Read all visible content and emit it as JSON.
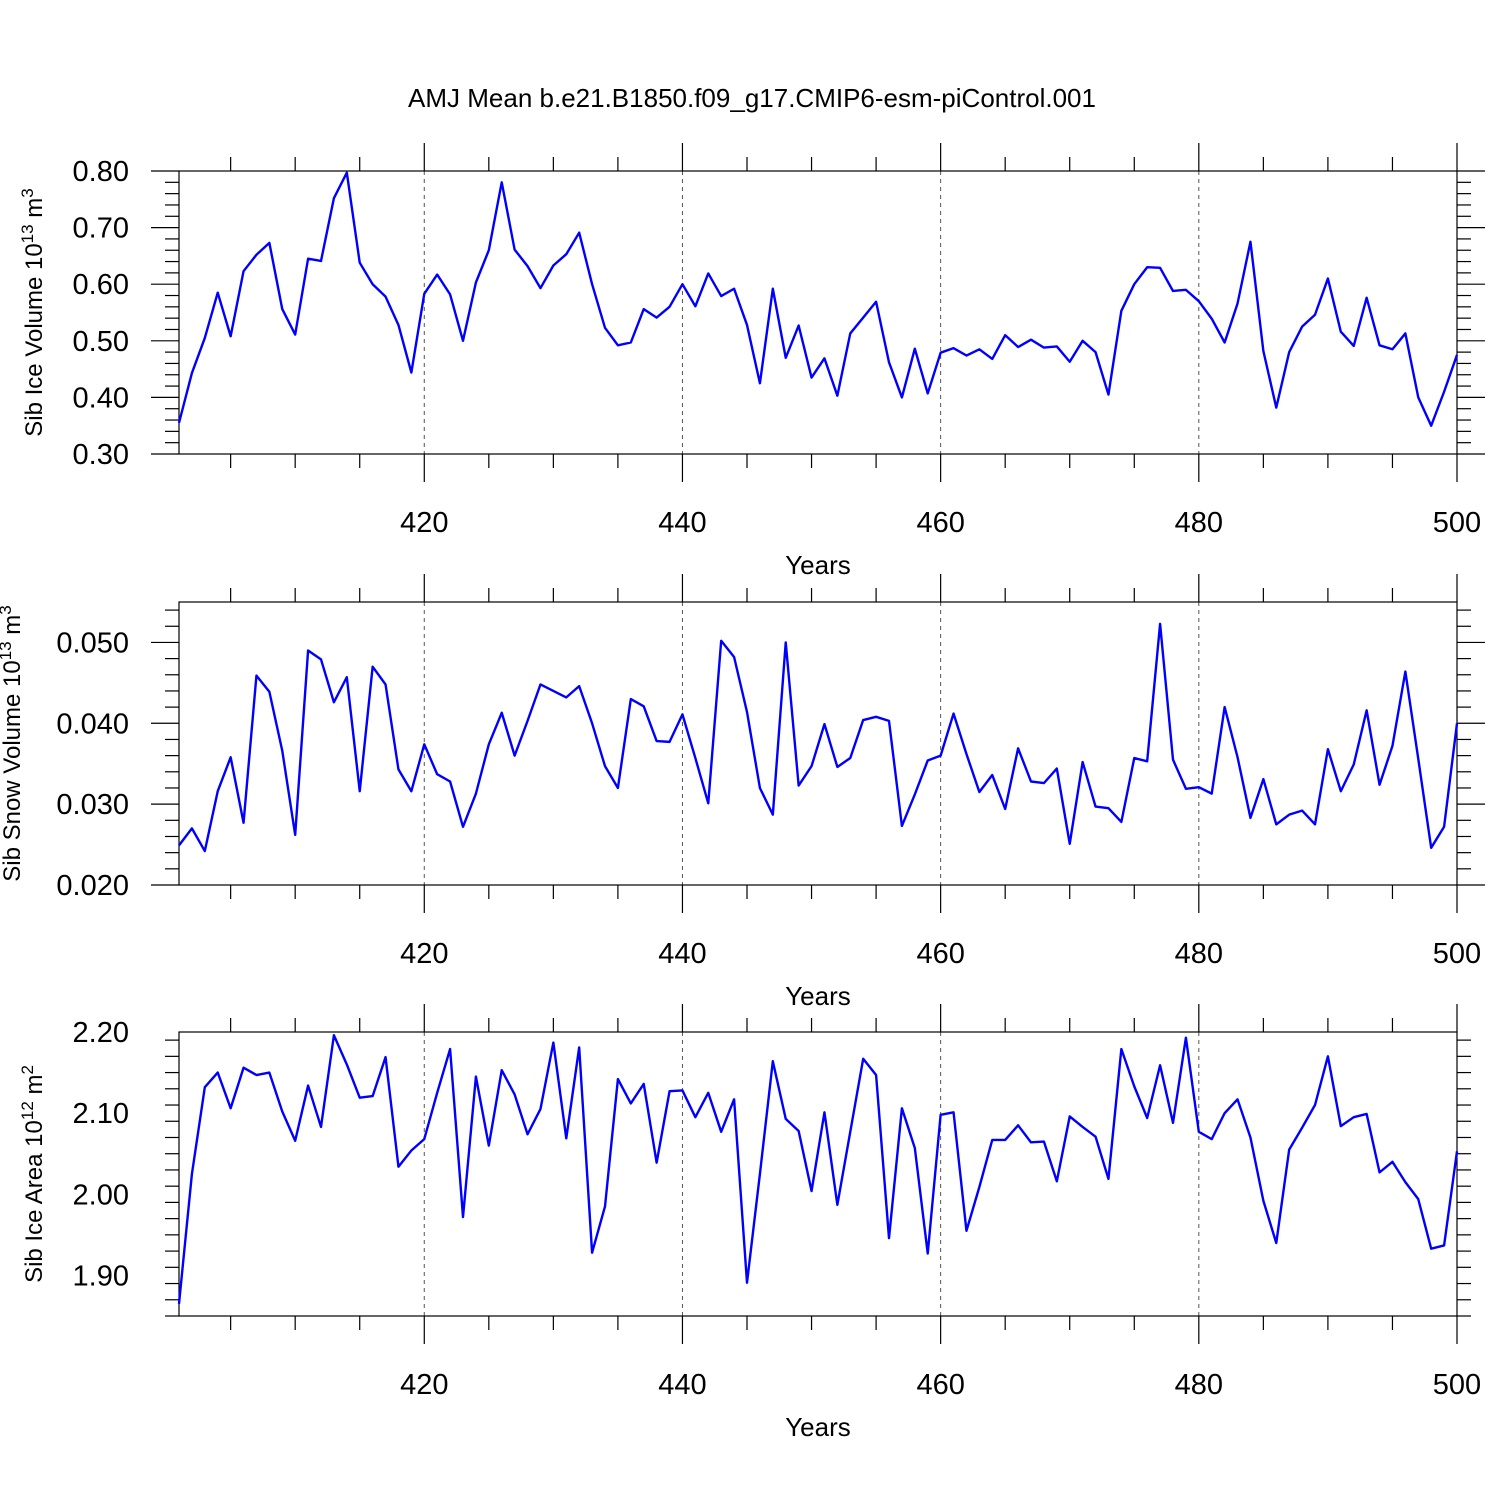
{
  "figure": {
    "title": "AMJ Mean b.e21.B1850.f09_g17.CMIP6-esm-piControl.001"
  },
  "style": {
    "line_color": "#0000ff",
    "grid_color": "#555555"
  },
  "chart_data": [
    {
      "type": "line",
      "xlabel": "Years",
      "ylabel": {
        "prefix": "Sib Ice Volume 10",
        "sup1": "13",
        "mid": " m",
        "sup2": "3"
      },
      "xlim": [
        401,
        500
      ],
      "ylim": [
        0.3,
        0.8
      ],
      "xticks": [
        420,
        440,
        460,
        480,
        500
      ],
      "xticklabels": [
        "420",
        "440",
        "460",
        "480",
        "500"
      ],
      "yticks": [
        0.3,
        0.4,
        0.5,
        0.6,
        0.7,
        0.8
      ],
      "yticklabels": [
        "0.30",
        "0.40",
        "0.50",
        "0.60",
        "0.70",
        "0.80"
      ],
      "grid": "vertical dashed at major x ticks",
      "series": [
        {
          "x_start": 401,
          "values": [
            0.355,
            0.443,
            0.505,
            0.585,
            0.508,
            0.623,
            0.652,
            0.673,
            0.556,
            0.511,
            0.645,
            0.641,
            0.752,
            0.797,
            0.638,
            0.6,
            0.578,
            0.528,
            0.444,
            0.583,
            0.617,
            0.582,
            0.5,
            0.603,
            0.66,
            0.78,
            0.661,
            0.632,
            0.593,
            0.633,
            0.653,
            0.691,
            0.6,
            0.523,
            0.492,
            0.497,
            0.556,
            0.541,
            0.56,
            0.6,
            0.561,
            0.619,
            0.579,
            0.592,
            0.528,
            0.425,
            0.592,
            0.47,
            0.527,
            0.435,
            0.469,
            0.403,
            0.513,
            0.541,
            0.569,
            0.462,
            0.4,
            0.486,
            0.407,
            0.479,
            0.487,
            0.474,
            0.485,
            0.468,
            0.51,
            0.489,
            0.502,
            0.488,
            0.49,
            0.463,
            0.5,
            0.48,
            0.405,
            0.553,
            0.6,
            0.63,
            0.629,
            0.588,
            0.59,
            0.57,
            0.539,
            0.497,
            0.566,
            0.675,
            0.482,
            0.382,
            0.48,
            0.525,
            0.546,
            0.61,
            0.516,
            0.491,
            0.576,
            0.492,
            0.485,
            0.513,
            0.4,
            0.35,
            0.41,
            0.475
          ]
        }
      ]
    },
    {
      "type": "line",
      "xlabel": "Years",
      "ylabel": {
        "prefix": "Sib Snow Volume 10",
        "sup1": "13",
        "mid": " m",
        "sup2": "3"
      },
      "xlim": [
        401,
        500
      ],
      "ylim": [
        0.02,
        0.055
      ],
      "xticks": [
        420,
        440,
        460,
        480,
        500
      ],
      "xticklabels": [
        "420",
        "440",
        "460",
        "480",
        "500"
      ],
      "yticks": [
        0.02,
        0.03,
        0.04,
        0.05
      ],
      "yticklabels": [
        "0.020",
        "0.030",
        "0.040",
        "0.050"
      ],
      "grid": "vertical dashed at major x ticks",
      "series": [
        {
          "x_start": 401,
          "values": [
            0.0249,
            0.027,
            0.0242,
            0.0316,
            0.0358,
            0.0277,
            0.0459,
            0.0439,
            0.0366,
            0.0262,
            0.049,
            0.0479,
            0.0426,
            0.0457,
            0.0316,
            0.047,
            0.0448,
            0.0343,
            0.0316,
            0.0374,
            0.0337,
            0.0328,
            0.0272,
            0.0313,
            0.0374,
            0.0413,
            0.036,
            0.0403,
            0.0448,
            0.044,
            0.0432,
            0.0446,
            0.04,
            0.0347,
            0.032,
            0.043,
            0.0421,
            0.0378,
            0.0377,
            0.0411,
            0.0357,
            0.0301,
            0.0502,
            0.0482,
            0.0414,
            0.032,
            0.0287,
            0.05,
            0.0323,
            0.0347,
            0.0399,
            0.0346,
            0.0357,
            0.0404,
            0.0408,
            0.0403,
            0.0273,
            0.0312,
            0.0354,
            0.036,
            0.0412,
            0.0362,
            0.0315,
            0.0336,
            0.0294,
            0.0369,
            0.0328,
            0.0326,
            0.0344,
            0.0251,
            0.0352,
            0.0297,
            0.0295,
            0.0278,
            0.0357,
            0.0353,
            0.0523,
            0.0355,
            0.0319,
            0.0321,
            0.0313,
            0.042,
            0.0358,
            0.0283,
            0.0331,
            0.0275,
            0.0287,
            0.0292,
            0.0275,
            0.0368,
            0.0316,
            0.0349,
            0.0416,
            0.0324,
            0.0372,
            0.0464,
            0.0356,
            0.0246,
            0.0272,
            0.04
          ]
        }
      ]
    },
    {
      "type": "line",
      "xlabel": "Years",
      "ylabel": {
        "prefix": "Sib Ice Area 10",
        "sup1": "12",
        "mid": " m",
        "sup2": "2"
      },
      "xlim": [
        401,
        500
      ],
      "ylim": [
        1.85,
        2.2
      ],
      "xticks": [
        420,
        440,
        460,
        480,
        500
      ],
      "xticklabels": [
        "420",
        "440",
        "460",
        "480",
        "500"
      ],
      "yticks": [
        1.9,
        2.0,
        2.1,
        2.2
      ],
      "yticklabels": [
        "1.90",
        "2.00",
        "2.10",
        "2.20"
      ],
      "grid": "vertical dashed at major x ticks",
      "series": [
        {
          "x_start": 401,
          "values": [
            1.865,
            2.025,
            2.132,
            2.15,
            2.106,
            2.156,
            2.147,
            2.15,
            2.102,
            2.066,
            2.134,
            2.083,
            2.196,
            2.16,
            2.119,
            2.121,
            2.169,
            2.034,
            2.054,
            2.068,
            2.125,
            2.179,
            1.972,
            2.145,
            2.06,
            2.153,
            2.123,
            2.074,
            2.105,
            2.187,
            2.069,
            2.181,
            1.928,
            1.985,
            2.142,
            2.112,
            2.136,
            2.039,
            2.127,
            2.128,
            2.095,
            2.125,
            2.077,
            2.117,
            1.891,
            2.025,
            2.164,
            2.093,
            2.078,
            2.004,
            2.101,
            1.987,
            2.077,
            2.167,
            2.147,
            1.946,
            2.106,
            2.057,
            1.927,
            2.098,
            2.101,
            1.955,
            2.009,
            2.067,
            2.067,
            2.085,
            2.064,
            2.065,
            2.016,
            2.096,
            2.083,
            2.071,
            2.019,
            2.179,
            2.133,
            2.094,
            2.159,
            2.088,
            2.193,
            2.077,
            2.068,
            2.1,
            2.117,
            2.07,
            1.992,
            1.94,
            2.055,
            2.082,
            2.11,
            2.17,
            2.084,
            2.095,
            2.099,
            2.027,
            2.04,
            2.015,
            1.994,
            1.933,
            1.937,
            2.053
          ]
        }
      ]
    }
  ]
}
